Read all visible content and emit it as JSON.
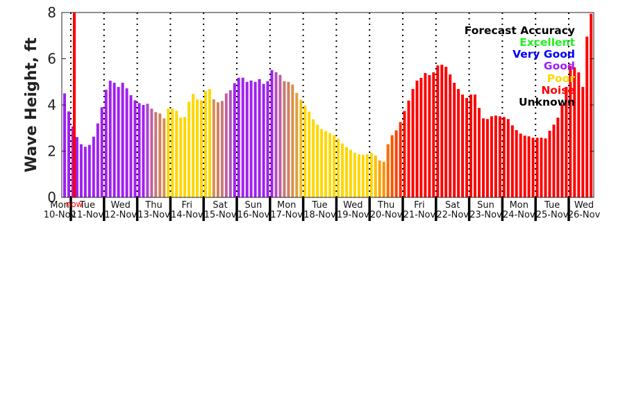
{
  "chart_data": {
    "type": "bar",
    "title": "",
    "xlabel": "",
    "ylabel": "Wave Height, ft",
    "ylim": [
      0,
      8
    ],
    "yticks": [
      "0",
      "2",
      "4",
      "6",
      "8"
    ],
    "interval_hours": 3,
    "grid": "dotted vertical lines at day boundaries",
    "now_label": "now",
    "now_color": "#ff0000",
    "days": [
      {
        "name": "Mon",
        "date": "10-Nov"
      },
      {
        "name": "Tue",
        "date": "11-Nov"
      },
      {
        "name": "Wed",
        "date": "12-Nov"
      },
      {
        "name": "Thu",
        "date": "13-Nov"
      },
      {
        "name": "Fri",
        "date": "14-Nov"
      },
      {
        "name": "Sat",
        "date": "15-Nov"
      },
      {
        "name": "Sun",
        "date": "16-Nov"
      },
      {
        "name": "Mon",
        "date": "17-Nov"
      },
      {
        "name": "Tue",
        "date": "18-Nov"
      },
      {
        "name": "Wed",
        "date": "19-Nov"
      },
      {
        "name": "Thu",
        "date": "20-Nov"
      },
      {
        "name": "Fri",
        "date": "21-Nov"
      },
      {
        "name": "Sat",
        "date": "22-Nov"
      },
      {
        "name": "Sun",
        "date": "23-Nov"
      },
      {
        "name": "Mon",
        "date": "24-Nov"
      },
      {
        "name": "Tue",
        "date": "25-Nov"
      },
      {
        "name": "Wed",
        "date": "26-Nov"
      }
    ],
    "values": [
      4.5,
      3.72,
      3.07,
      2.61,
      2.3,
      2.19,
      2.27,
      2.63,
      3.2,
      3.9,
      4.66,
      5.05,
      4.96,
      4.78,
      4.96,
      4.72,
      4.42,
      4.2,
      4.08,
      4.0,
      4.05,
      3.84,
      3.69,
      3.63,
      3.42,
      3.84,
      3.84,
      3.75,
      3.45,
      3.48,
      4.14,
      4.48,
      4.24,
      4.2,
      4.6,
      4.69,
      4.24,
      4.11,
      4.17,
      4.5,
      4.64,
      4.94,
      5.18,
      5.18,
      5.0,
      5.06,
      5.0,
      5.12,
      4.91,
      5.03,
      5.51,
      5.42,
      5.3,
      5.03,
      5.0,
      4.88,
      4.52,
      4.22,
      3.98,
      3.71,
      3.38,
      3.14,
      2.96,
      2.87,
      2.78,
      2.69,
      2.54,
      2.33,
      2.18,
      2.06,
      1.93,
      1.87,
      1.84,
      1.87,
      1.93,
      1.81,
      1.6,
      1.54,
      2.3,
      2.69,
      2.9,
      3.26,
      3.74,
      4.19,
      4.69,
      5.05,
      5.17,
      5.38,
      5.29,
      5.41,
      5.71,
      5.74,
      5.65,
      5.32,
      4.96,
      4.69,
      4.45,
      4.3,
      4.45,
      4.45,
      3.87,
      3.42,
      3.39,
      3.51,
      3.54,
      3.51,
      3.48,
      3.39,
      3.12,
      2.91,
      2.76,
      2.67,
      2.64,
      2.58,
      2.58,
      2.58,
      2.55,
      2.88,
      3.15,
      3.45,
      4.02,
      4.78,
      5.69,
      5.63,
      5.41,
      4.78,
      6.96,
      7.95
    ],
    "color_runs": [
      {
        "count": 20,
        "color": "#a020f0"
      },
      {
        "count": 1,
        "color": "#b040d0"
      },
      {
        "count": 1,
        "color": "#c060a0"
      },
      {
        "count": 1,
        "color": "#c87878"
      },
      {
        "count": 1,
        "color": "#d08060"
      },
      {
        "count": 1,
        "color": "#d89050"
      },
      {
        "count": 11,
        "color": "#ffd700"
      },
      {
        "count": 1,
        "color": "#d89050"
      },
      {
        "count": 1,
        "color": "#d08060"
      },
      {
        "count": 1,
        "color": "#c87878"
      },
      {
        "count": 1,
        "color": "#c060a0"
      },
      {
        "count": 1,
        "color": "#b050c0"
      },
      {
        "count": 10,
        "color": "#a020f0"
      },
      {
        "count": 1,
        "color": "#b050c0"
      },
      {
        "count": 1,
        "color": "#c060a0"
      },
      {
        "count": 1,
        "color": "#c87878"
      },
      {
        "count": 1,
        "color": "#d08060"
      },
      {
        "count": 1,
        "color": "#d89050"
      },
      {
        "count": 1,
        "color": "#e0a040"
      },
      {
        "count": 1,
        "color": "#f0c020"
      },
      {
        "count": 17,
        "color": "#ffd700"
      },
      {
        "count": 1,
        "color": "#ffc000"
      },
      {
        "count": 1,
        "color": "#ffa000"
      },
      {
        "count": 1,
        "color": "#ff9000"
      },
      {
        "count": 1,
        "color": "#ff6a00"
      },
      {
        "count": 1,
        "color": "#ff5500"
      },
      {
        "count": 1,
        "color": "#ff4000"
      },
      {
        "count": 1,
        "color": "#ff2a00"
      },
      {
        "count": 1,
        "color": "#ff1000"
      },
      {
        "count": 45,
        "color": "#ff0000"
      }
    ],
    "legend": {
      "placement": "top-right",
      "title": "Forecast Accuracy",
      "entries": [
        {
          "label": "Excellent",
          "color": "#22ee22"
        },
        {
          "label": "Very Good",
          "color": "#0000ff"
        },
        {
          "label": "Good",
          "color": "#a020f0"
        },
        {
          "label": "Poor",
          "color": "#ffd700"
        },
        {
          "label": "Noise",
          "color": "#ff0000"
        },
        {
          "label": "Unknown",
          "color": "#000000"
        }
      ]
    }
  }
}
